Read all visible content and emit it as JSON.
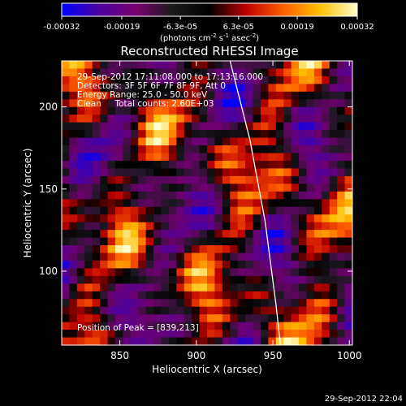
{
  "chart_data": {
    "type": "heatmap",
    "title": "Reconstructed RHESSI Image",
    "xlabel": "Heliocentric X (arcsec)",
    "ylabel": "Heliocentric Y (arcsec)",
    "xlim": [
      812,
      1002
    ],
    "ylim": [
      55,
      228
    ],
    "x_ticks": [
      850,
      900,
      950,
      1000
    ],
    "y_ticks": [
      100,
      150,
      200
    ],
    "colorbar": {
      "range": [
        -0.00032,
        0.00032
      ],
      "tick_values": [
        -0.00032,
        -0.00019,
        -6.3e-05,
        6.3e-05,
        0.00019,
        0.00032
      ],
      "tick_labels": [
        "-0.00032",
        "-0.00019",
        "-6.3e-05",
        "6.3e-05",
        "0.00019",
        "0.00032"
      ],
      "units_html": "(photons cm<tspan baseline-shift=\"super\" font-size=\"7\">-2</tspan> s<tspan baseline-shift=\"super\" font-size=\"7\">-1</tspan> asec<tspan baseline-shift=\"super\" font-size=\"7\">-2</tspan>)",
      "colors": [
        "#0000ff",
        "#4b00a0",
        "#7a0070",
        "#1a1a1a",
        "#000000",
        "#c00000",
        "#ff6000",
        "#ffc000",
        "#ffffd0"
      ]
    },
    "annotations": {
      "time_range": "29-Sep-2012 17:11:08.000 to 17:13:16.000",
      "detectors": "Detectors: 3F 5F 6F 7F 8F 9F, Att 0",
      "energy_range": "Energy Range: 25.0 - 50.0 keV",
      "clean_counts": "Clean     Total counts: 2.60E+03",
      "peak_position": "Position of Peak = [839,213]"
    },
    "limb_curve": {
      "x": [
        922,
        935,
        945,
        952,
        955
      ],
      "y": [
        228,
        180,
        130,
        80,
        55
      ]
    },
    "peak": {
      "x": 839,
      "y": 213
    },
    "timestamp": "29-Sep-2012 22:04"
  }
}
